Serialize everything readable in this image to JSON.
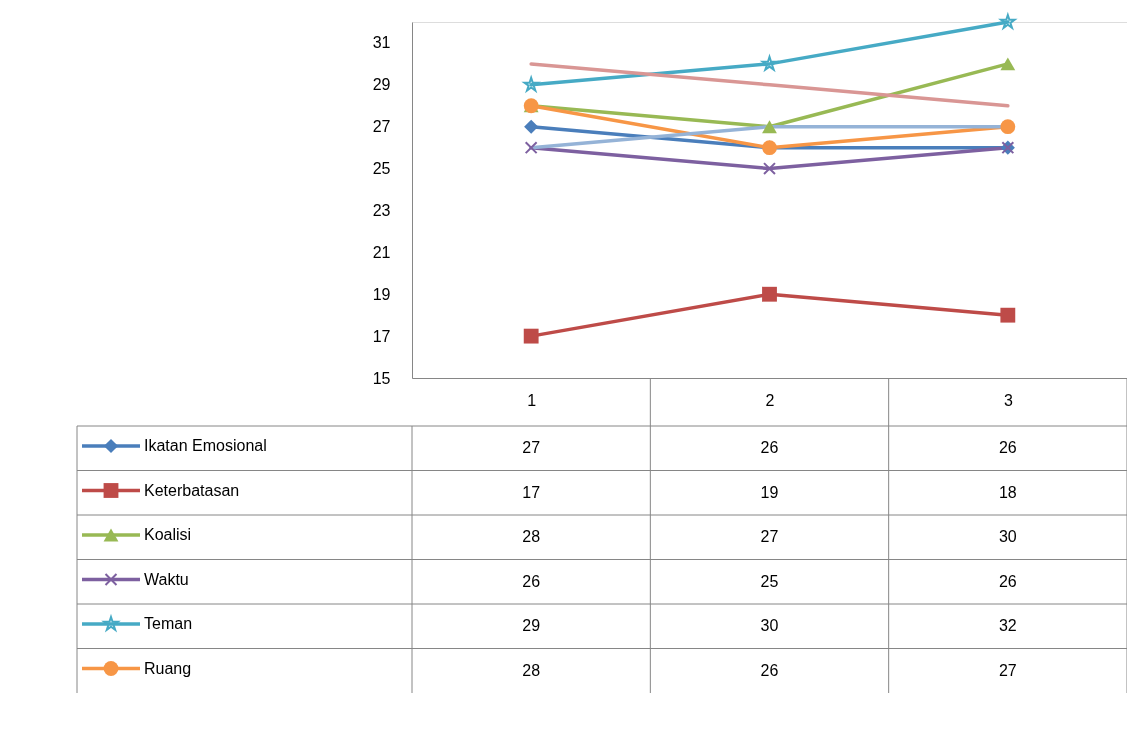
{
  "chart_data": {
    "type": "line",
    "categories": [
      "1",
      "2",
      "3"
    ],
    "series": [
      {
        "name": "Ikatan Emosional",
        "color": "#4a7ebb",
        "marker": "diamond",
        "values": [
          27,
          26,
          26
        ],
        "value_labels": [
          "27",
          "26",
          "26"
        ]
      },
      {
        "name": "Keterbatasan",
        "color": "#be4b48",
        "marker": "square",
        "values": [
          17,
          19,
          18
        ],
        "value_labels": [
          "17",
          "19",
          "18"
        ]
      },
      {
        "name": "Koalisi",
        "color": "#98b954",
        "marker": "triangle",
        "values": [
          28,
          27,
          30
        ],
        "value_labels": [
          "28",
          "27",
          "30"
        ]
      },
      {
        "name": "Waktu",
        "color": "#7d60a0",
        "marker": "cross",
        "values": [
          26,
          25,
          26
        ],
        "value_labels": [
          "26",
          "25",
          "26"
        ]
      },
      {
        "name": "Teman",
        "color": "#46aac5",
        "marker": "star",
        "values": [
          29,
          30,
          32
        ],
        "value_labels": [
          "29",
          "30",
          "32"
        ]
      },
      {
        "name": "Ruang",
        "color": "#f79646",
        "marker": "circle",
        "values": [
          28,
          26,
          27
        ],
        "value_labels": [
          "28",
          "26",
          "27"
        ]
      },
      {
        "color": "#d99694",
        "marker": "none",
        "values": [
          30,
          29,
          28
        ]
      },
      {
        "color": "#95b3d7",
        "marker": "none",
        "values": [
          26,
          27,
          27
        ]
      }
    ],
    "ylim": [
      15,
      32
    ],
    "yticks": [
      15,
      17,
      19,
      21,
      23,
      25,
      27,
      29,
      31
    ],
    "grid": false,
    "legend": "bottom"
  }
}
